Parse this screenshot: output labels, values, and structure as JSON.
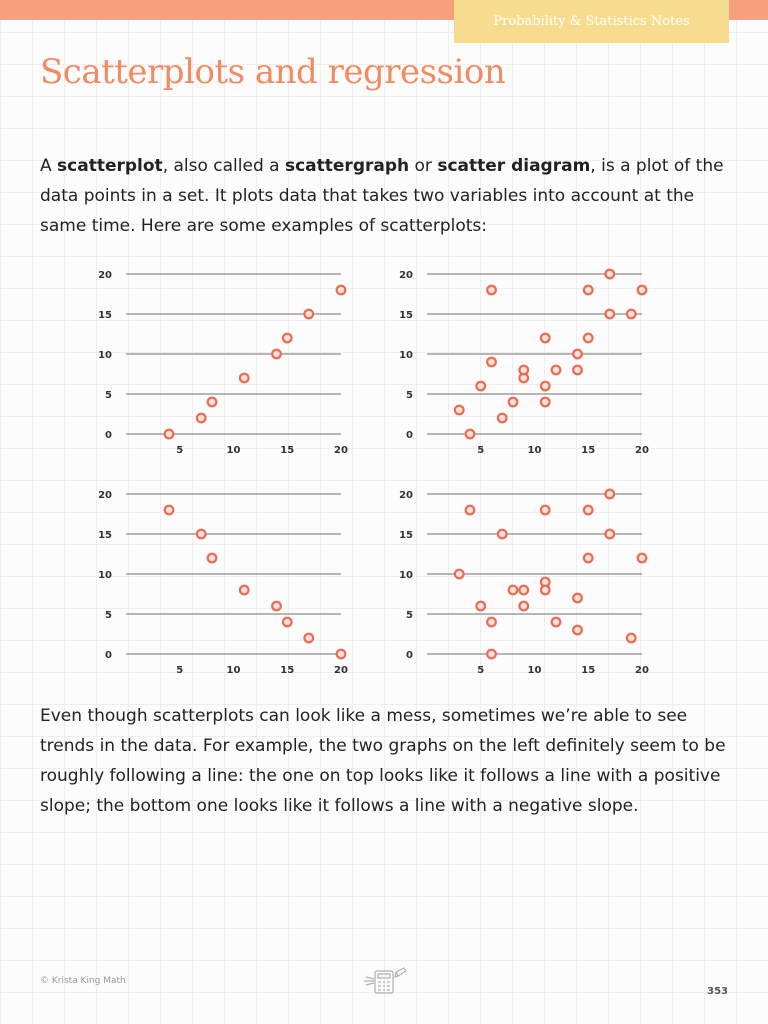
{
  "header": {
    "notes_label": "Probability & Statistics Notes"
  },
  "page": {
    "title": "Scatterplots and regression",
    "intro": [
      {
        "text": "A ",
        "bold": false
      },
      {
        "text": "scatterplot",
        "bold": true
      },
      {
        "text": ", also called a ",
        "bold": false
      },
      {
        "text": "scattergraph",
        "bold": true
      },
      {
        "text": " or ",
        "bold": false
      },
      {
        "text": "scatter diagram",
        "bold": true
      },
      {
        "text": ", is a plot of the data points in a set. It plots data that takes two variables into account at the same time. Here are some examples of scatterplots:",
        "bold": false
      }
    ],
    "conclusion": "Even though scatterplots can look like a mess, sometimes we’re able to see trends in the data. For example, the two graphs on the left definitely seem to be roughly following a line: the one on top looks like it follows a line with a positive slope; the bottom one looks like it follows a line with a negative slope."
  },
  "footer": {
    "copyright": "© Krista King Math",
    "page_number": "353",
    "logo_icon": "calculator-pencil-logo-icon"
  },
  "colors": {
    "accent_title": "#f28b61",
    "top_bar": "#f7a07f",
    "header_tab": "#f6dc8e",
    "marker_fill": "#fde2dc",
    "marker_stroke": "#ec6a52"
  },
  "chart_data": [
    {
      "type": "scatter",
      "position": "top-left",
      "xlim": [
        0,
        20
      ],
      "ylim": [
        0,
        20
      ],
      "xticks": [
        5,
        10,
        15,
        20
      ],
      "yticks": [
        0,
        5,
        10,
        15,
        20
      ],
      "grid": "horizontal",
      "points": [
        [
          4,
          0
        ],
        [
          7,
          2
        ],
        [
          8,
          4
        ],
        [
          11,
          7
        ],
        [
          14,
          10
        ],
        [
          15,
          12
        ],
        [
          17,
          15
        ],
        [
          20,
          18
        ]
      ]
    },
    {
      "type": "scatter",
      "position": "top-right",
      "xlim": [
        0,
        20
      ],
      "ylim": [
        0,
        20
      ],
      "xticks": [
        5,
        10,
        15,
        20
      ],
      "yticks": [
        0,
        5,
        10,
        15,
        20
      ],
      "grid": "horizontal",
      "points": [
        [
          3,
          3
        ],
        [
          4,
          0
        ],
        [
          5,
          6
        ],
        [
          6,
          9
        ],
        [
          6,
          18
        ],
        [
          7,
          2
        ],
        [
          8,
          4
        ],
        [
          9,
          7
        ],
        [
          9,
          8
        ],
        [
          11,
          4
        ],
        [
          11,
          6
        ],
        [
          11,
          12
        ],
        [
          12,
          8
        ],
        [
          14,
          8
        ],
        [
          14,
          10
        ],
        [
          15,
          12
        ],
        [
          15,
          18
        ],
        [
          17,
          15
        ],
        [
          17,
          20
        ],
        [
          19,
          15
        ],
        [
          20,
          18
        ]
      ]
    },
    {
      "type": "scatter",
      "position": "bottom-left",
      "xlim": [
        0,
        20
      ],
      "ylim": [
        0,
        20
      ],
      "xticks": [
        5,
        10,
        15,
        20
      ],
      "yticks": [
        0,
        5,
        10,
        15,
        20
      ],
      "grid": "horizontal",
      "points": [
        [
          4,
          18
        ],
        [
          7,
          15
        ],
        [
          8,
          12
        ],
        [
          11,
          8
        ],
        [
          14,
          6
        ],
        [
          15,
          4
        ],
        [
          17,
          2
        ],
        [
          20,
          0
        ]
      ]
    },
    {
      "type": "scatter",
      "position": "bottom-right",
      "xlim": [
        0,
        20
      ],
      "ylim": [
        0,
        20
      ],
      "xticks": [
        5,
        10,
        15,
        20
      ],
      "yticks": [
        0,
        5,
        10,
        15,
        20
      ],
      "grid": "horizontal",
      "points": [
        [
          3,
          10
        ],
        [
          4,
          18
        ],
        [
          5,
          6
        ],
        [
          6,
          4
        ],
        [
          6,
          0
        ],
        [
          7,
          15
        ],
        [
          8,
          8
        ],
        [
          9,
          8
        ],
        [
          9,
          6
        ],
        [
          11,
          9
        ],
        [
          11,
          8
        ],
        [
          11,
          18
        ],
        [
          12,
          4
        ],
        [
          14,
          7
        ],
        [
          14,
          3
        ],
        [
          15,
          12
        ],
        [
          15,
          18
        ],
        [
          17,
          20
        ],
        [
          17,
          15
        ],
        [
          19,
          2
        ],
        [
          20,
          12
        ]
      ]
    }
  ]
}
